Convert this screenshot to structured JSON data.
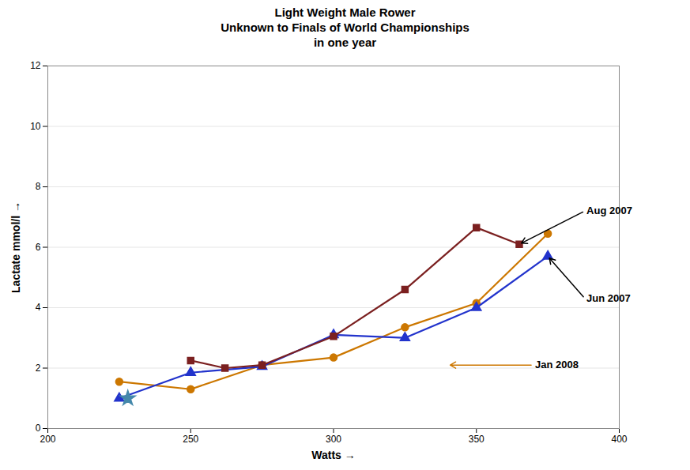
{
  "chart_data": {
    "type": "line",
    "title": "Light Weight Male Rower\nUnknown to Finals of World Championships\nin one year",
    "xlabel": "Watts",
    "ylabel": "Lactate mmol/l",
    "xlim": [
      200,
      400
    ],
    "ylim": [
      0,
      12
    ],
    "xticks": [
      200,
      250,
      300,
      350,
      400
    ],
    "yticks": [
      0,
      2,
      4,
      6,
      8,
      10,
      12
    ],
    "grid": true,
    "series": [
      {
        "color": "#cc7700",
        "marker": "circle",
        "x": [
          225,
          250,
          275,
          300,
          325,
          350,
          375
        ],
        "values": [
          1.55,
          1.3,
          2.1,
          2.35,
          3.35,
          4.15,
          6.45
        ]
      },
      {
        "color": "#2233cc",
        "marker": "triangle",
        "x": [
          225,
          250,
          275,
          300,
          325,
          350,
          375
        ],
        "values": [
          1.0,
          1.85,
          2.05,
          3.1,
          3.0,
          4.0,
          5.7
        ]
      },
      {
        "color": "#7b2020",
        "marker": "square",
        "x": [
          250,
          262,
          275,
          300,
          325,
          350,
          365
        ],
        "values": [
          2.25,
          2.0,
          2.1,
          3.05,
          4.6,
          6.65,
          6.1
        ]
      },
      {
        "type": "scatter",
        "color": "#4488aa",
        "marker": "star",
        "x": [
          228
        ],
        "values": [
          1.0
        ]
      }
    ],
    "annotations": [
      {
        "text": "Aug 2007",
        "xy": [
          365,
          6.1
        ],
        "xytext": [
          388,
          7.2
        ]
      },
      {
        "text": "Jun 2007",
        "xy": [
          375,
          5.7
        ],
        "xytext": [
          388,
          4.3
        ]
      },
      {
        "text": "Jan 2008",
        "xy": [
          340,
          2.1
        ],
        "xytext": [
          370,
          2.1
        ],
        "color": "#cc7700"
      }
    ]
  }
}
